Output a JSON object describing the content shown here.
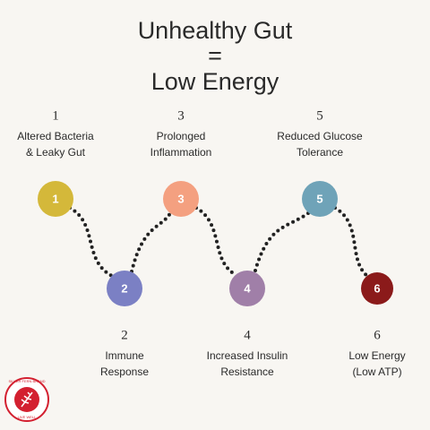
{
  "header": {
    "title_lines": [
      "Unhealthy Gut",
      "=",
      "Low Energy"
    ]
  },
  "steps": [
    {
      "number": "1",
      "lines": [
        "Altered Bacteria",
        "& Leaky Gut"
      ]
    },
    {
      "number": "2",
      "lines": [
        "Immune",
        "Response"
      ]
    },
    {
      "number": "3",
      "lines": [
        "Prolonged",
        "Inflammation"
      ]
    },
    {
      "number": "4",
      "lines": [
        "Increased Insulin",
        "Resistance"
      ]
    },
    {
      "number": "5",
      "lines": [
        "Reduced Glucose",
        "Tolerance"
      ]
    },
    {
      "number": "6",
      "lines": [
        "Low Energy",
        "(Low ATP)"
      ]
    }
  ],
  "logo": {
    "top": "SILVER FERN BRAND",
    "bottom": "LIVE WELL"
  }
}
